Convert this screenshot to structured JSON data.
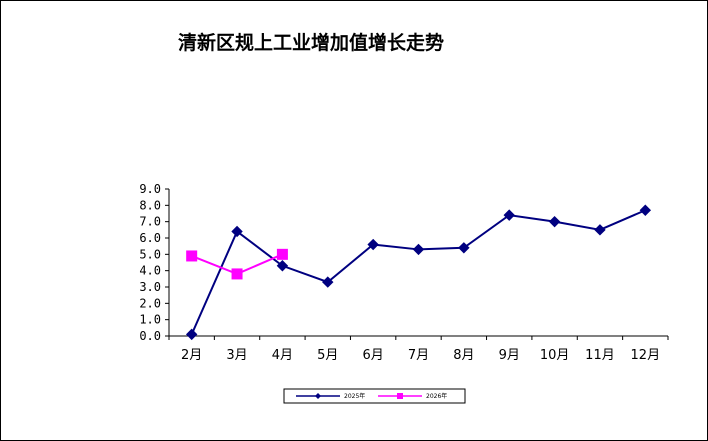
{
  "chart_data": {
    "type": "line",
    "title": "清新区规上工业增加值增长走势",
    "categories": [
      "2月",
      "3月",
      "4月",
      "5月",
      "6月",
      "7月",
      "8月",
      "9月",
      "10月",
      "11月",
      "12月"
    ],
    "series": [
      {
        "name": "2025年",
        "color": "#000080",
        "marker": "diamond",
        "values": [
          0.1,
          6.4,
          4.3,
          3.3,
          5.6,
          5.3,
          5.4,
          7.4,
          7.0,
          6.5,
          7.7
        ]
      },
      {
        "name": "2026年",
        "color": "#ff00ff",
        "marker": "square",
        "values": [
          4.9,
          3.8,
          5.0,
          null,
          null,
          null,
          null,
          null,
          null,
          null,
          null
        ]
      }
    ],
    "yticks": [
      "0.0",
      "1.0",
      "2.0",
      "3.0",
      "4.0",
      "5.0",
      "6.0",
      "7.0",
      "8.0",
      "9.0"
    ],
    "ylim": [
      0,
      9
    ],
    "grid": false,
    "legend_position": "bottom"
  }
}
